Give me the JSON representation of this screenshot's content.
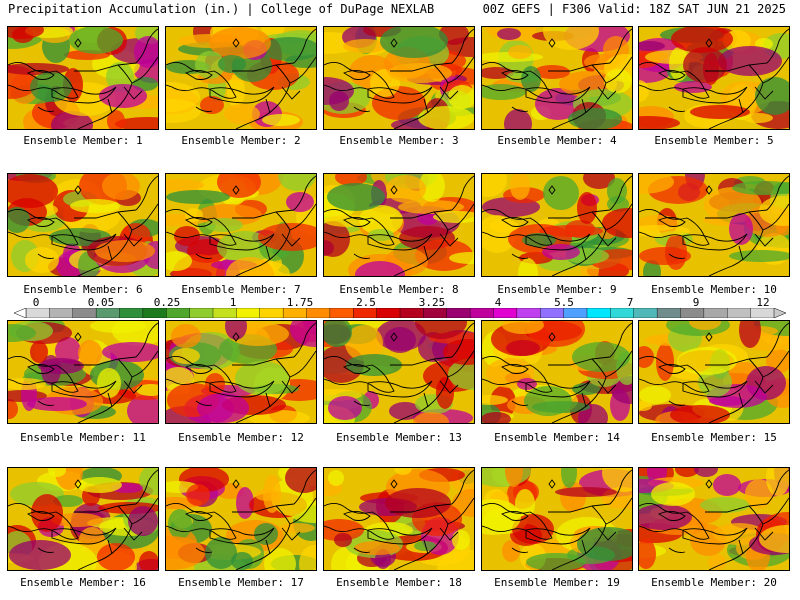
{
  "header": {
    "left": "Precipitation Accumulation (in.) | College of DuPage NEXLAB",
    "right": "00Z GEFS | F306 Valid: 18Z SAT JUN 21 2025"
  },
  "members": [
    "Ensemble Member: 1",
    "Ensemble Member: 2",
    "Ensemble Member: 3",
    "Ensemble Member: 4",
    "Ensemble Member: 5",
    "Ensemble Member: 6",
    "Ensemble Member: 7",
    "Ensemble Member: 8",
    "Ensemble Member: 9",
    "Ensemble Member: 10",
    "Ensemble Member: 11",
    "Ensemble Member: 12",
    "Ensemble Member: 13",
    "Ensemble Member: 14",
    "Ensemble Member: 15",
    "Ensemble Member: 16",
    "Ensemble Member: 17",
    "Ensemble Member: 18",
    "Ensemble Member: 19",
    "Ensemble Member: 20"
  ],
  "colorbar": {
    "labels": [
      "0",
      "0.05",
      "0.25",
      "1",
      "1.75",
      "2.5",
      "3.25",
      "4",
      "5.5",
      "7",
      "9",
      "12"
    ],
    "colors": [
      "#d9d9d9",
      "#b4b4b4",
      "#8c8c8c",
      "#5a9a6e",
      "#2f8f3a",
      "#1d7a1d",
      "#4fa82d",
      "#8fcc2e",
      "#c4e01e",
      "#f2f200",
      "#ffd400",
      "#ffb000",
      "#ff8c00",
      "#ff5c00",
      "#f02800",
      "#d80000",
      "#b4001e",
      "#a0003c",
      "#9a0070",
      "#c0009c",
      "#e000d0",
      "#c040f0",
      "#9070ff",
      "#4fa0ff",
      "#00e6ff",
      "#30d8d8",
      "#50b8b8",
      "#708c8c",
      "#8c8c8c",
      "#a8a8a8",
      "#c0c0c0",
      "#d8d8d8"
    ]
  },
  "panel_style": {
    "base": "#e8c200",
    "palette": [
      "#f2f200",
      "#ffd400",
      "#ffb000",
      "#ff8c00",
      "#f02800",
      "#d80000",
      "#b4001e",
      "#9a0070",
      "#8fcc2e",
      "#4fa82d",
      "#2f8f3a",
      "#c0009c"
    ]
  }
}
